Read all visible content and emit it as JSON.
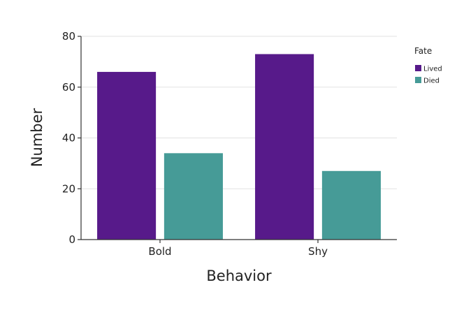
{
  "chart_data": {
    "type": "bar",
    "title": "",
    "xlabel": "Behavior",
    "ylabel": "Number",
    "categories": [
      "Bold",
      "Shy"
    ],
    "series": [
      {
        "name": "Lived",
        "values": [
          66,
          73
        ],
        "color": "#571a8a"
      },
      {
        "name": "Died",
        "values": [
          34,
          27
        ],
        "color": "#469b97"
      }
    ],
    "ylim": [
      0,
      80
    ],
    "yticks": [
      0,
      20,
      40,
      60,
      80
    ],
    "grid": "horizontal",
    "legend": {
      "title": "Fate",
      "position": "right"
    }
  }
}
